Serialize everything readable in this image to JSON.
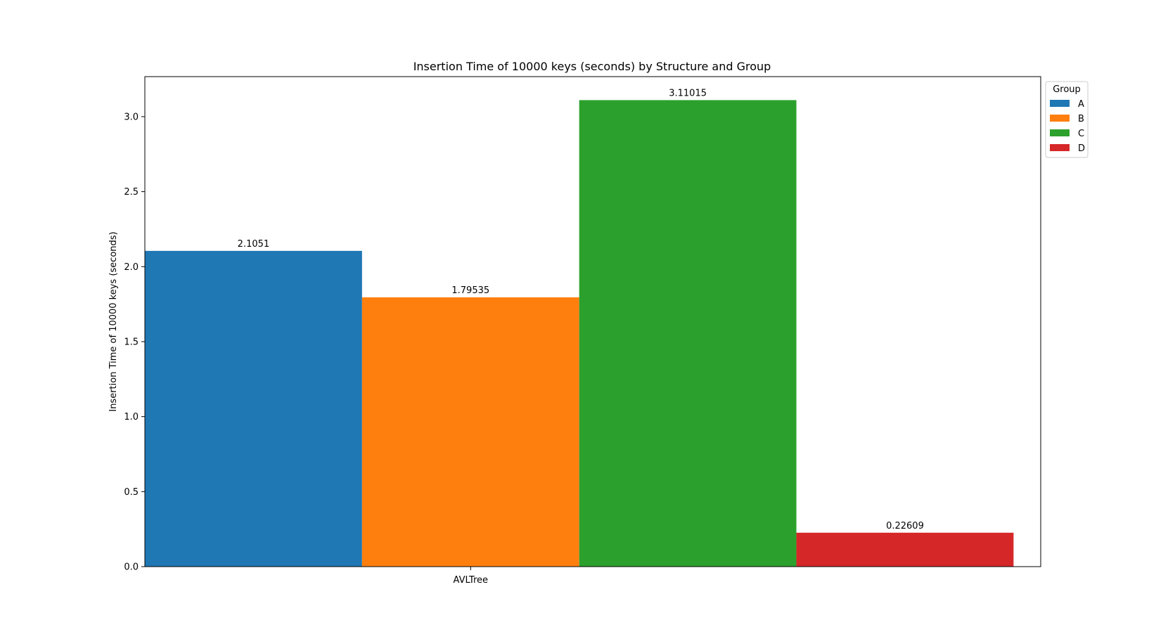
{
  "chart_data": {
    "type": "bar",
    "title": "Insertion Time of 10000 keys (seconds) by Structure and Group",
    "xlabel": "",
    "ylabel": "Insertion Time of 10000 keys (seconds)",
    "categories": [
      "AVLTree"
    ],
    "ylim": [
      0,
      3.2668
    ],
    "yticks": [
      0.0,
      0.5,
      1.0,
      1.5,
      2.0,
      2.5,
      3.0
    ],
    "ytick_labels": [
      "0.0",
      "0.5",
      "1.0",
      "1.5",
      "2.0",
      "2.5",
      "3.0"
    ],
    "grid": false,
    "legend": {
      "title": "Group",
      "placement": "outside-top-right"
    },
    "series": [
      {
        "name": "A",
        "values": [
          2.1051
        ],
        "label": "2.1051",
        "color": "#1f77b4"
      },
      {
        "name": "B",
        "values": [
          1.79535
        ],
        "label": "1.79535",
        "color": "#ff7f0e"
      },
      {
        "name": "C",
        "values": [
          3.11015
        ],
        "label": "3.11015",
        "color": "#2ca02c"
      },
      {
        "name": "D",
        "values": [
          0.22609
        ],
        "label": "0.22609",
        "color": "#d62728"
      }
    ]
  }
}
